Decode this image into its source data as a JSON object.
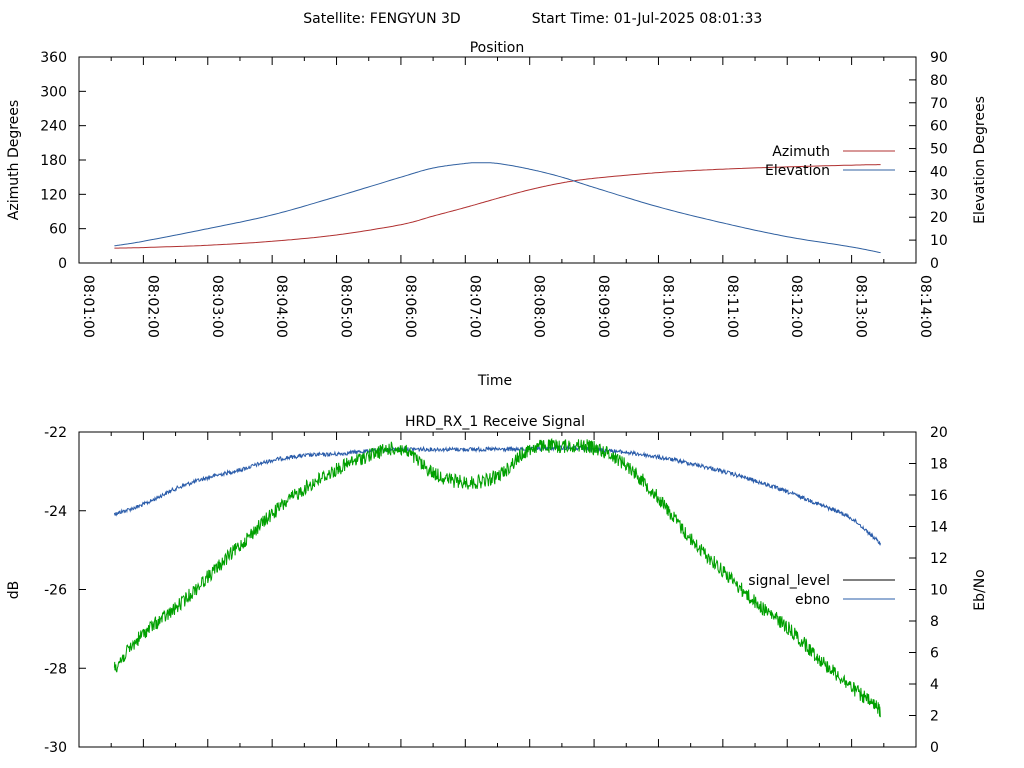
{
  "header": {
    "satellite_label": "Satellite: FENGYUN 3D",
    "start_time_label": "Start Time: 01-Jul-2025 08:01:33"
  },
  "chart_data": [
    {
      "type": "line",
      "title": "Position",
      "xlabel": "Time",
      "ylabel": "Azimuth Degrees",
      "y2label": "Elevation Degrees",
      "x_range": [
        "08:01:00",
        "08:14:00"
      ],
      "ylim": [
        0,
        360
      ],
      "y2lim": [
        0,
        90
      ],
      "x_ticks": [
        "08:01:00",
        "08:02:00",
        "08:03:00",
        "08:04:00",
        "08:05:00",
        "08:06:00",
        "08:07:00",
        "08:08:00",
        "08:09:00",
        "08:10:00",
        "08:11:00",
        "08:12:00",
        "08:13:00",
        "08:14:00"
      ],
      "y_ticks": [
        "0",
        "60",
        "120",
        "180",
        "240",
        "300",
        "360"
      ],
      "y2_ticks": [
        "0",
        "10",
        "20",
        "30",
        "40",
        "50",
        "60",
        "70",
        "80",
        "90"
      ],
      "legend_position": "right",
      "grid": false,
      "series": [
        {
          "name": "Azimuth",
          "axis": "y",
          "color": "#b03030",
          "x": [
            "08:01:33",
            "08:02:00",
            "08:03:00",
            "08:04:00",
            "08:05:00",
            "08:06:00",
            "08:06:30",
            "08:07:00",
            "08:07:30",
            "08:08:00",
            "08:08:30",
            "08:09:00",
            "08:10:00",
            "08:11:00",
            "08:12:00",
            "08:13:00",
            "08:13:27"
          ],
          "values": [
            26,
            27,
            31,
            38,
            49,
            67,
            82,
            97,
            113,
            128,
            140,
            148,
            158,
            164,
            168,
            171,
            172
          ]
        },
        {
          "name": "Elevation",
          "axis": "y2",
          "color": "#3060a0",
          "x": [
            "08:01:33",
            "08:02:00",
            "08:03:00",
            "08:04:00",
            "08:05:00",
            "08:06:00",
            "08:06:30",
            "08:07:00",
            "08:07:12",
            "08:07:30",
            "08:08:00",
            "08:08:30",
            "08:09:00",
            "08:10:00",
            "08:11:00",
            "08:12:00",
            "08:13:00",
            "08:13:27"
          ],
          "values": [
            7.5,
            9.5,
            15,
            21,
            29,
            37.5,
            41.5,
            43.5,
            43.8,
            43.5,
            41,
            37.5,
            33,
            24.5,
            17.5,
            11.5,
            7,
            4.5
          ]
        }
      ]
    },
    {
      "type": "line",
      "title": "HRD_RX_1 Receive Signal",
      "ylabel": "dB",
      "y2label": "Eb/No",
      "x_range": [
        "08:01:00",
        "08:14:00"
      ],
      "ylim": [
        -30,
        -22
      ],
      "y2lim": [
        0,
        20
      ],
      "y_ticks": [
        "-30",
        "-28",
        "-26",
        "-24",
        "-22"
      ],
      "y2_ticks": [
        "0",
        "2",
        "4",
        "6",
        "8",
        "10",
        "12",
        "14",
        "16",
        "18",
        "20"
      ],
      "legend_position": "right",
      "grid": false,
      "series": [
        {
          "name": "signal_level",
          "axis": "y",
          "color": "#000000",
          "x": [],
          "values": []
        },
        {
          "name": "ebno",
          "axis": "y2",
          "color": "#2a5caa",
          "x": [
            "08:01:33",
            "08:02:00",
            "08:02:30",
            "08:03:00",
            "08:03:30",
            "08:04:00",
            "08:04:30",
            "08:05:00",
            "08:05:30",
            "08:06:00",
            "08:06:30",
            "08:07:00",
            "08:07:30",
            "08:08:00",
            "08:08:30",
            "08:09:00",
            "08:09:30",
            "08:10:00",
            "08:10:30",
            "08:11:00",
            "08:11:30",
            "08:12:00",
            "08:12:30",
            "08:13:00",
            "08:13:27"
          ],
          "values": [
            14.8,
            15.4,
            16.4,
            17.1,
            17.6,
            18.2,
            18.5,
            18.6,
            18.8,
            18.9,
            18.9,
            18.9,
            18.9,
            18.9,
            19.0,
            18.9,
            18.7,
            18.4,
            18.0,
            17.5,
            16.9,
            16.2,
            15.4,
            14.5,
            12.9
          ]
        },
        {
          "name": "",
          "axis": "y2",
          "color": "#00a000",
          "x": [
            "08:01:33",
            "08:02:00",
            "08:02:30",
            "08:03:00",
            "08:03:30",
            "08:04:00",
            "08:04:30",
            "08:05:00",
            "08:05:30",
            "08:06:00",
            "08:06:30",
            "08:07:00",
            "08:07:30",
            "08:08:00",
            "08:08:30",
            "08:09:00",
            "08:09:30",
            "08:10:00",
            "08:10:30",
            "08:11:00",
            "08:11:30",
            "08:12:00",
            "08:12:30",
            "08:13:00",
            "08:13:27"
          ],
          "values": [
            5.0,
            7.2,
            8.8,
            10.8,
            12.8,
            14.8,
            16.4,
            17.6,
            18.5,
            18.9,
            17.4,
            16.8,
            17.2,
            18.9,
            19.1,
            19.0,
            17.9,
            15.8,
            13.2,
            11.2,
            9.2,
            7.6,
            5.6,
            3.8,
            2.3
          ]
        }
      ]
    }
  ]
}
